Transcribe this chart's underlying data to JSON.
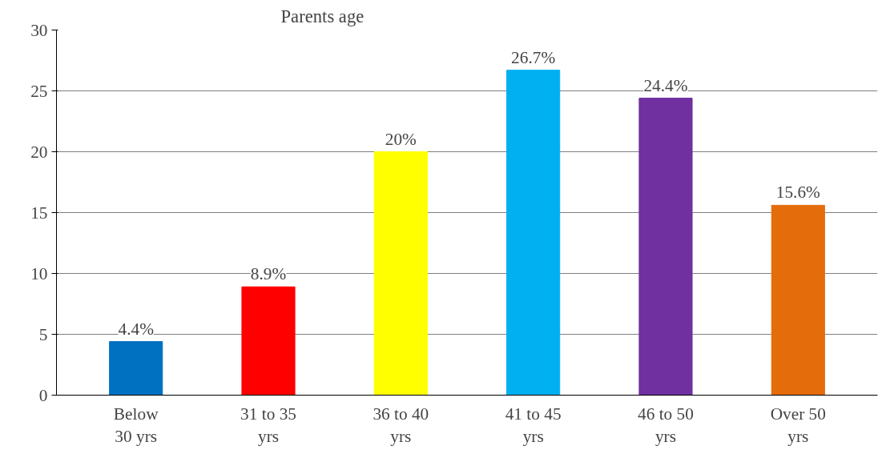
{
  "chart_data": {
    "type": "bar",
    "title": "Parents age",
    "categories": [
      "Below\n30 yrs",
      "31 to 35\nyrs",
      "36 to 40\nyrs",
      "41 to 45\nyrs",
      "46 to 50\nyrs",
      "Over 50\nyrs"
    ],
    "values": [
      4.4,
      8.9,
      20,
      26.7,
      24.4,
      15.6
    ],
    "colors": [
      "#0070c0",
      "#ff0000",
      "#ffff00",
      "#00b0f0",
      "#7030a0",
      "#e46c0a"
    ],
    "value_labels": [
      "4.4%",
      "8.9%",
      "20%",
      "26.7%",
      "24.4%",
      "15.6%"
    ],
    "ylim": [
      0,
      30
    ],
    "yticks": [
      0,
      5,
      10,
      15,
      20,
      25,
      30
    ],
    "grid": "y"
  }
}
